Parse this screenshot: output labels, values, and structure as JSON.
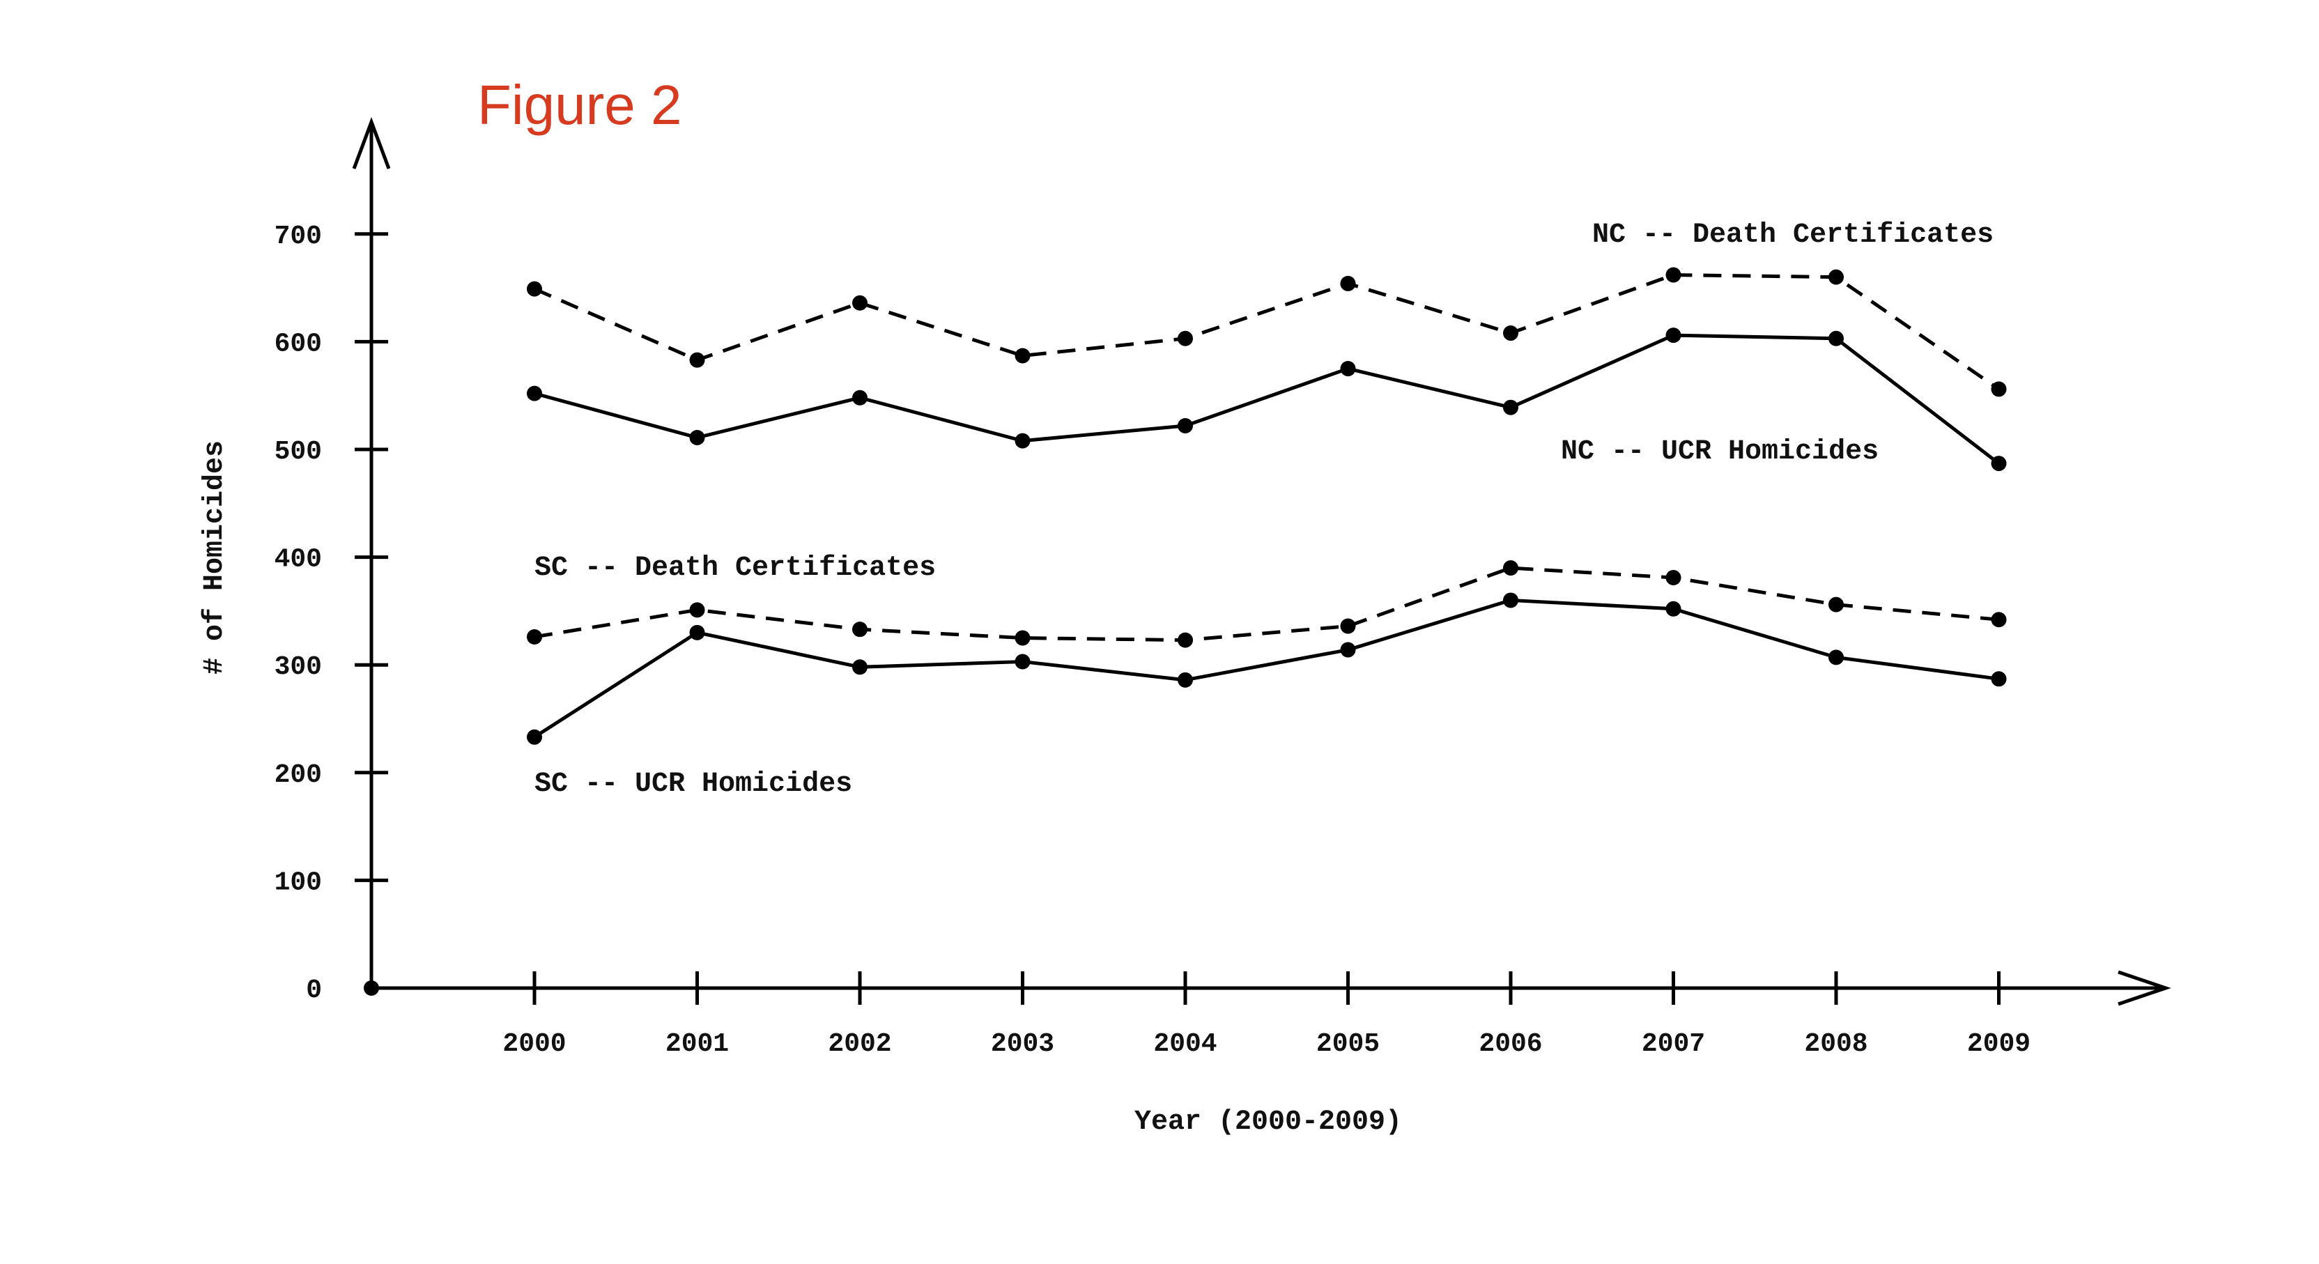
{
  "figure_label": "Figure 2",
  "colors": {
    "figure_label": "#d63a1f",
    "ink": "#000000"
  },
  "chart_data": {
    "type": "line",
    "xlabel": "Year (2000-2009)",
    "ylabel": "# of Homicides",
    "x": [
      2000,
      2001,
      2002,
      2003,
      2004,
      2005,
      2006,
      2007,
      2008,
      2009
    ],
    "x_tick_labels": [
      "2000",
      "2001",
      "2002",
      "2003",
      "2004",
      "2005",
      "2006",
      "2007",
      "2008",
      "2009"
    ],
    "y_ticks": [
      0,
      100,
      200,
      300,
      400,
      500,
      600,
      700
    ],
    "y_tick_labels": [
      "0",
      "100",
      "200",
      "300",
      "400",
      "500",
      "600",
      "700"
    ],
    "ylim": [
      0,
      800
    ],
    "grid": false,
    "series": [
      {
        "name": "NC -- Death Certificates",
        "style": "dashed",
        "values": [
          649,
          583,
          636,
          587,
          603,
          654,
          608,
          662,
          660,
          556
        ]
      },
      {
        "name": "NC -- UCR Homicides",
        "style": "solid",
        "values": [
          552,
          511,
          548,
          508,
          522,
          575,
          539,
          606,
          603,
          487
        ]
      },
      {
        "name": "SC -- Death Certificates",
        "style": "dashed",
        "values": [
          326,
          351,
          333,
          325,
          323,
          336,
          390,
          381,
          356,
          342
        ]
      },
      {
        "name": "SC -- UCR Homicides",
        "style": "solid",
        "values": [
          233,
          330,
          298,
          303,
          286,
          314,
          360,
          352,
          307,
          287
        ]
      }
    ],
    "annotations": [
      {
        "text": "NC -- Death Certificates",
        "near": "top-right"
      },
      {
        "text": "NC -- UCR Homicides",
        "near": "right"
      },
      {
        "text": "SC -- Death Certificates",
        "near": "left"
      },
      {
        "text": "SC -- UCR Homicides",
        "near": "bottom-left"
      }
    ]
  }
}
